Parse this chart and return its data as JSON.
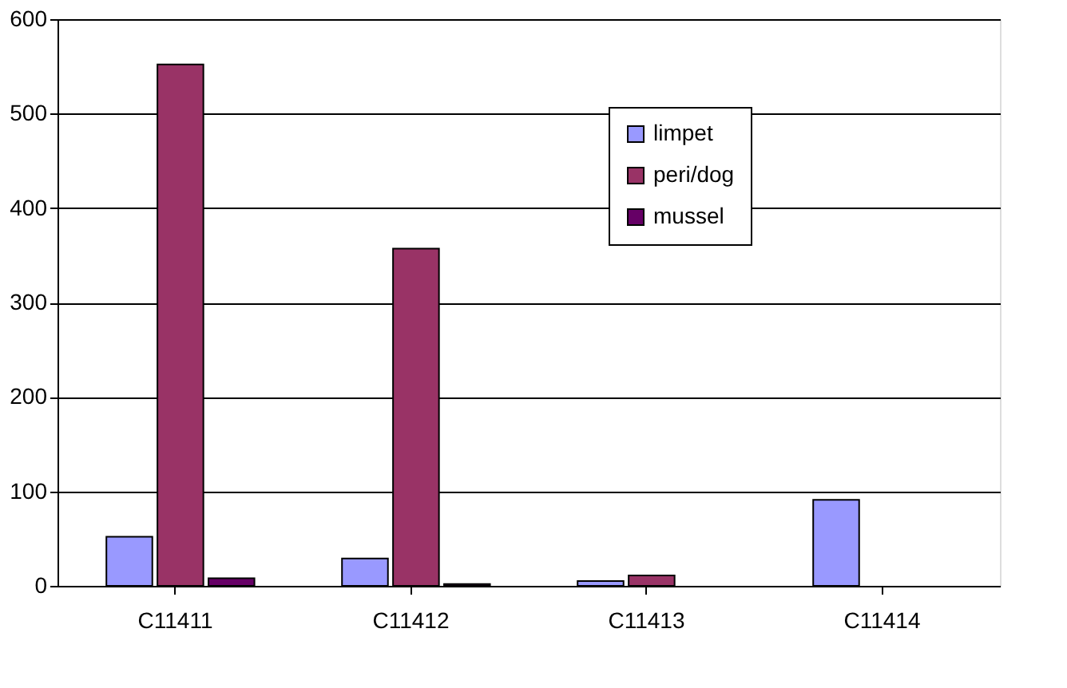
{
  "chart_data": {
    "type": "bar",
    "categories": [
      "C11411",
      "C11412",
      "C11413",
      "C11414"
    ],
    "series": [
      {
        "name": "limpet",
        "color": "#9999ff",
        "values": [
          52,
          29,
          5,
          91
        ]
      },
      {
        "name": "peri/dog",
        "color": "#993366",
        "values": [
          552,
          357,
          11,
          null
        ]
      },
      {
        "name": "mussel",
        "color": "#660066",
        "values": [
          8,
          2,
          null,
          null
        ]
      }
    ],
    "ylim": [
      0,
      600
    ],
    "yticks": [
      0,
      100,
      200,
      300,
      400,
      500,
      600
    ],
    "grid": "y",
    "legend": "top right"
  }
}
